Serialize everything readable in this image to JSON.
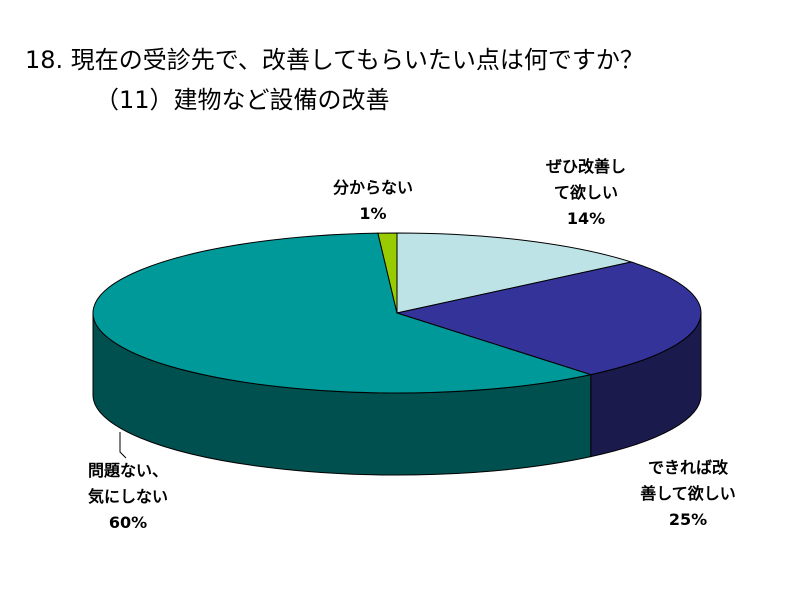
{
  "title": {
    "line1": "18. 現在の受診先で、改善してもらいたい点は何ですか？",
    "line2": "（11）建物など設備の改善"
  },
  "chart_data": {
    "type": "pie",
    "title": "18. 現在の受診先で、改善してもらいたい点は何ですか？ （11）建物など設備の改善",
    "legend": "none",
    "slices": [
      {
        "name": "ぜひ改善して欲しい",
        "label_lines": [
          "ぜひ改善し",
          "て欲しい"
        ],
        "value": 14,
        "value_label": "14%",
        "color": "#bde3e6",
        "side_color": "#8fbfc3"
      },
      {
        "name": "できれば改善して欲しい",
        "label_lines": [
          "できれば改",
          "善して欲しい"
        ],
        "value": 25,
        "value_label": "25%",
        "color": "#333399",
        "side_color": "#1a1a4d"
      },
      {
        "name": "問題ない、気にしない",
        "label_lines": [
          "問題ない、",
          "気にしない"
        ],
        "value": 60,
        "value_label": "60%",
        "color": "#009999",
        "side_color": "#005050"
      },
      {
        "name": "分からない",
        "label_lines": [
          "分からない"
        ],
        "value": 1,
        "value_label": "1%",
        "color": "#99cc00",
        "side_color": "#5c7a00"
      }
    ]
  }
}
